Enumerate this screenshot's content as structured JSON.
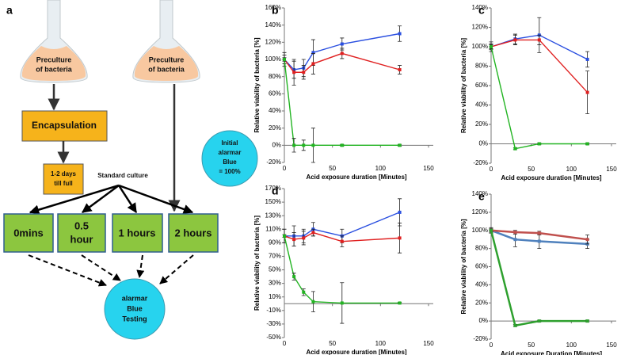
{
  "diagram": {
    "label": "a",
    "flask_left": [
      "Preculture",
      "of bacteria"
    ],
    "flask_right": [
      "Preculture",
      "of bacteria"
    ],
    "encapsulation": "Encapsulation",
    "wait": [
      "1-2 days",
      "till full"
    ],
    "standard": "Standard culture",
    "initial": [
      "Initial",
      "alarmar",
      "Blue",
      "= 100%"
    ],
    "times": [
      "0mins",
      [
        "0.5",
        "hour"
      ],
      "1 hours",
      "2 hours"
    ],
    "testing": [
      "alarmar",
      "Blue",
      "Testing"
    ]
  },
  "chart_data": [
    {
      "type": "line",
      "panel": "b",
      "xlabel": "Acid exposure duration [Minutes]",
      "ylabel": "Relative viability of bacteria [%]",
      "x": [
        0,
        10,
        20,
        30,
        60,
        120
      ],
      "xlim": [
        0,
        150
      ],
      "xticks": [
        0,
        50,
        100,
        150
      ],
      "ylim": [
        -20,
        160
      ],
      "yticks": [
        {
          "value": -20,
          "label": "-20%"
        },
        {
          "value": 0,
          "label": "0%"
        },
        {
          "value": 20,
          "label": "20%"
        },
        {
          "value": 40,
          "label": "40%"
        },
        {
          "value": 60,
          "label": "60%"
        },
        {
          "value": 80,
          "label": "80%"
        },
        {
          "value": 100,
          "label": "100%"
        },
        {
          "value": 120,
          "label": "120%"
        },
        {
          "value": 140,
          "label": "140%"
        },
        {
          "value": 160,
          "label": "160%"
        }
      ],
      "series": [
        {
          "color": "#2a4fe0",
          "values": [
            100,
            88,
            90,
            108,
            118,
            130
          ],
          "errors": [
            8,
            10,
            10,
            15,
            7,
            9
          ]
        },
        {
          "color": "#e02020",
          "values": [
            100,
            85,
            85,
            95,
            107,
            88
          ],
          "errors": [
            5,
            15,
            8,
            12,
            6,
            5
          ]
        },
        {
          "color": "#22b422",
          "values": [
            100,
            0,
            0,
            0,
            0,
            0
          ],
          "errors": [
            2,
            8,
            6,
            20,
            1,
            1
          ]
        }
      ]
    },
    {
      "type": "line",
      "panel": "c",
      "xlabel": "Acid exposure duration [Minutes]",
      "ylabel": "Relative viability of bacteria [%]",
      "x": [
        0,
        30,
        60,
        120
      ],
      "xlim": [
        0,
        150
      ],
      "xticks": [
        0,
        50,
        100,
        150
      ],
      "ylim": [
        -20,
        140
      ],
      "yticks": [
        {
          "value": -20,
          "label": "-20%"
        },
        {
          "value": 0,
          "label": "0%"
        },
        {
          "value": 20,
          "label": "20%"
        },
        {
          "value": 40,
          "label": "40%"
        },
        {
          "value": 60,
          "label": "60%"
        },
        {
          "value": 80,
          "label": "80%"
        },
        {
          "value": 100,
          "label": "100%"
        },
        {
          "value": 120,
          "label": "120%"
        },
        {
          "value": 140,
          "label": "140%"
        }
      ],
      "series": [
        {
          "color": "#2a4fe0",
          "values": [
            100,
            108,
            112,
            87
          ],
          "errors": [
            5,
            5,
            18,
            8
          ]
        },
        {
          "color": "#e02020",
          "values": [
            100,
            107,
            107,
            53
          ],
          "errors": [
            3,
            5,
            5,
            22
          ]
        },
        {
          "color": "#22b422",
          "values": [
            100,
            -5,
            0,
            0
          ],
          "errors": [
            2,
            1,
            1,
            1
          ]
        }
      ]
    },
    {
      "type": "line",
      "panel": "d",
      "xlabel": "Acid exposure duration [Minutes]",
      "ylabel": "Relative viability of bacteria [%]",
      "x": [
        0,
        10,
        20,
        30,
        60,
        120
      ],
      "xlim": [
        0,
        150
      ],
      "xticks": [
        0,
        50,
        100,
        150
      ],
      "ylim": [
        -50,
        170
      ],
      "yticks": [
        {
          "value": -50,
          "label": "-50%"
        },
        {
          "value": -30,
          "label": "-30%"
        },
        {
          "value": -10,
          "label": "-10%"
        },
        {
          "value": 10,
          "label": "10%"
        },
        {
          "value": 30,
          "label": "30%"
        },
        {
          "value": 50,
          "label": "50%"
        },
        {
          "value": 70,
          "label": "70%"
        },
        {
          "value": 90,
          "label": "90%"
        },
        {
          "value": 110,
          "label": "110%"
        },
        {
          "value": 130,
          "label": "130%"
        },
        {
          "value": 150,
          "label": "150%"
        },
        {
          "value": 170,
          "label": "170%"
        }
      ],
      "series": [
        {
          "color": "#2a4fe0",
          "values": [
            100,
            100,
            100,
            110,
            100,
            135
          ],
          "errors": [
            10,
            15,
            10,
            10,
            10,
            20
          ]
        },
        {
          "color": "#e02020",
          "values": [
            100,
            95,
            97,
            105,
            92,
            97
          ],
          "errors": [
            10,
            10,
            10,
            5,
            8,
            22
          ]
        },
        {
          "color": "#22b422",
          "values": [
            100,
            40,
            17,
            3,
            1,
            1
          ],
          "errors": [
            2,
            5,
            5,
            15,
            30,
            1
          ]
        }
      ]
    },
    {
      "type": "line",
      "panel": "e",
      "xlabel": "Acid exposure Duration [Minutes]",
      "ylabel": "Relative viability of bacteria [%]",
      "x": [
        0,
        30,
        60,
        120
      ],
      "xlim": [
        0,
        150
      ],
      "xticks": [
        0,
        50,
        100,
        150
      ],
      "ylim": [
        -20,
        140
      ],
      "yticks": [
        {
          "value": -20,
          "label": "-20%"
        },
        {
          "value": 0,
          "label": "0%"
        },
        {
          "value": 20,
          "label": "20%"
        },
        {
          "value": 40,
          "label": "40%"
        },
        {
          "value": 60,
          "label": "60%"
        },
        {
          "value": 80,
          "label": "80%"
        },
        {
          "value": 100,
          "label": "100%"
        },
        {
          "value": 120,
          "label": "120%"
        },
        {
          "value": 140,
          "label": "140%"
        }
      ],
      "series": [
        {
          "color": "#4f81bd",
          "values": [
            100,
            90,
            88,
            85
          ],
          "errors": [
            3,
            8,
            8,
            5
          ]
        },
        {
          "color": "#c0504d",
          "values": [
            100,
            98,
            97,
            90
          ],
          "errors": [
            2,
            2,
            2,
            5
          ]
        },
        {
          "color": "#2ea02e",
          "values": [
            100,
            -5,
            0,
            0
          ],
          "errors": [
            1,
            1,
            1,
            1
          ]
        }
      ]
    }
  ]
}
